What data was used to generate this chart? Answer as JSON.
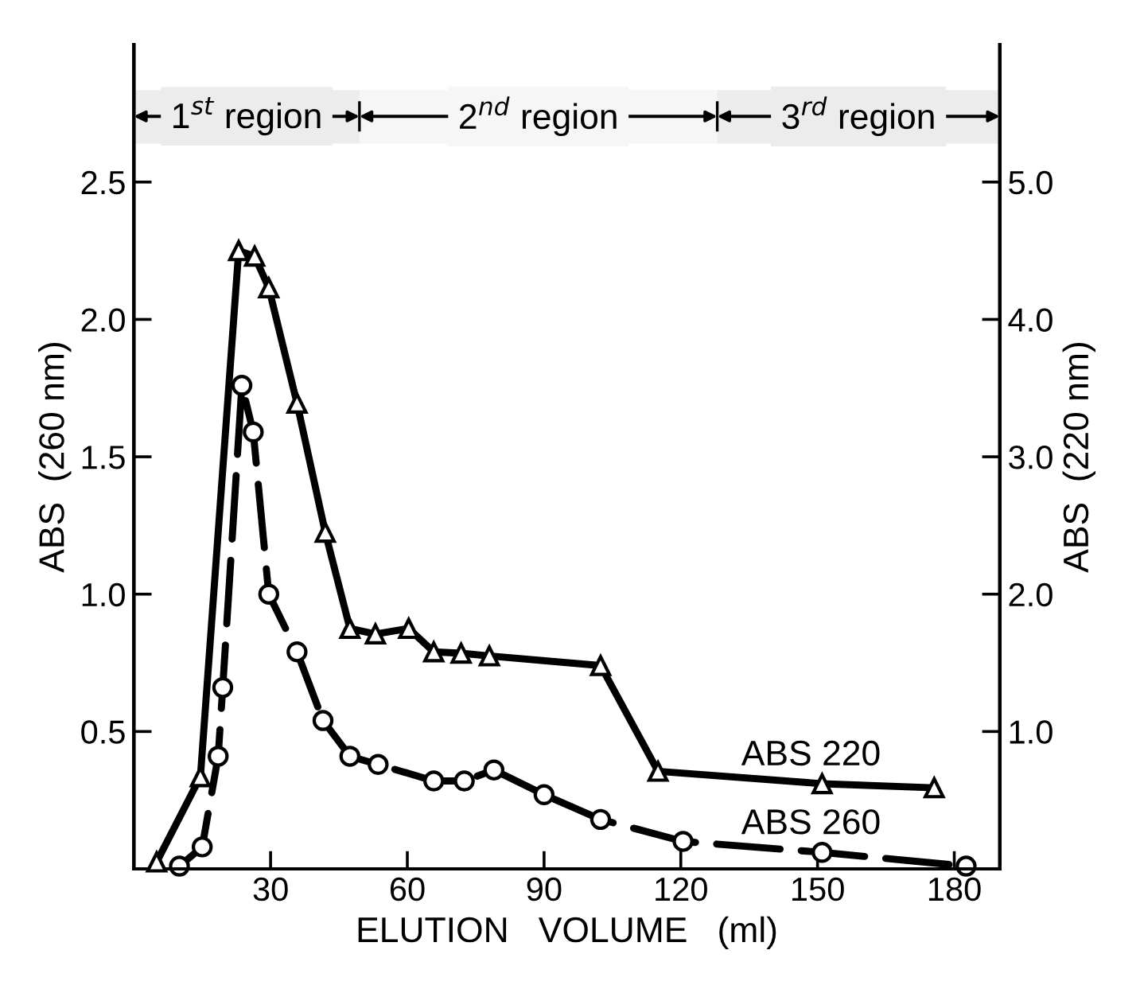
{
  "chart_data": {
    "type": "line",
    "xlabel": "ELUTION   VOLUME   (ml)",
    "ylabel": "ABS  (260 nm)",
    "y2label": "ABS  (220 nm)",
    "xlim": [
      0,
      190
    ],
    "xticks": [
      30,
      60,
      90,
      120,
      150,
      180
    ],
    "ylim": [
      0,
      3.0
    ],
    "yticks": [
      {
        "value": 0.5,
        "label": "0.5"
      },
      {
        "value": 1.0,
        "label": "1.0"
      },
      {
        "value": 1.5,
        "label": "1.5"
      },
      {
        "value": 2.0,
        "label": "2.0"
      },
      {
        "value": 2.5,
        "label": "2.5"
      }
    ],
    "y2lim": [
      0,
      6.0
    ],
    "y2ticks": [
      {
        "value": 1.0,
        "label": "1.0"
      },
      {
        "value": 2.0,
        "label": "2.0"
      },
      {
        "value": 3.0,
        "label": "3.0"
      },
      {
        "value": 4.0,
        "label": "4.0"
      },
      {
        "value": 5.0,
        "label": "5.0"
      }
    ],
    "grid": false,
    "legend": false,
    "bands": [
      {
        "axis": "x",
        "from": 0,
        "to": 49.5,
        "label": "1$^{st}$ region",
        "color": "#ececec"
      },
      {
        "axis": "x",
        "from": 49.5,
        "to": 128,
        "label": "2$^{nd}$ region",
        "color": "#f6f6f6"
      },
      {
        "axis": "x",
        "from": 128,
        "to": 190,
        "label": "3$^{rd}$ region",
        "color": "#ececec"
      }
    ],
    "series": [
      {
        "name": "ABS 220",
        "color": "#000000",
        "axis": "y2",
        "marker": "triangle",
        "line_style": "solid",
        "x": [
          5,
          14.6,
          23,
          26.5,
          29.6,
          35.8,
          42,
          47.4,
          53,
          60.3,
          65.8,
          71.8,
          78,
          102.4,
          115,
          151,
          175.6
        ],
        "values": [
          0.05,
          0.67,
          4.5,
          4.46,
          4.23,
          3.39,
          2.45,
          1.75,
          1.71,
          1.75,
          1.58,
          1.57,
          1.55,
          1.48,
          0.71,
          0.62,
          0.59
        ]
      },
      {
        "name": "ABS 260",
        "color": "#000000",
        "axis": "y",
        "marker": "circle",
        "line_style": "dashed",
        "x": [
          10,
          15,
          18.5,
          19.5,
          23.7,
          26.2,
          29.6,
          35.8,
          41.5,
          47.4,
          53.6,
          65.8,
          72.5,
          79,
          90,
          102.4,
          120.5,
          151,
          182.6
        ],
        "values": [
          0.01,
          0.08,
          0.41,
          0.66,
          1.76,
          1.59,
          1.0,
          0.79,
          0.54,
          0.41,
          0.38,
          0.32,
          0.32,
          0.36,
          0.27,
          0.18,
          0.1,
          0.06,
          0.01
        ]
      }
    ]
  }
}
